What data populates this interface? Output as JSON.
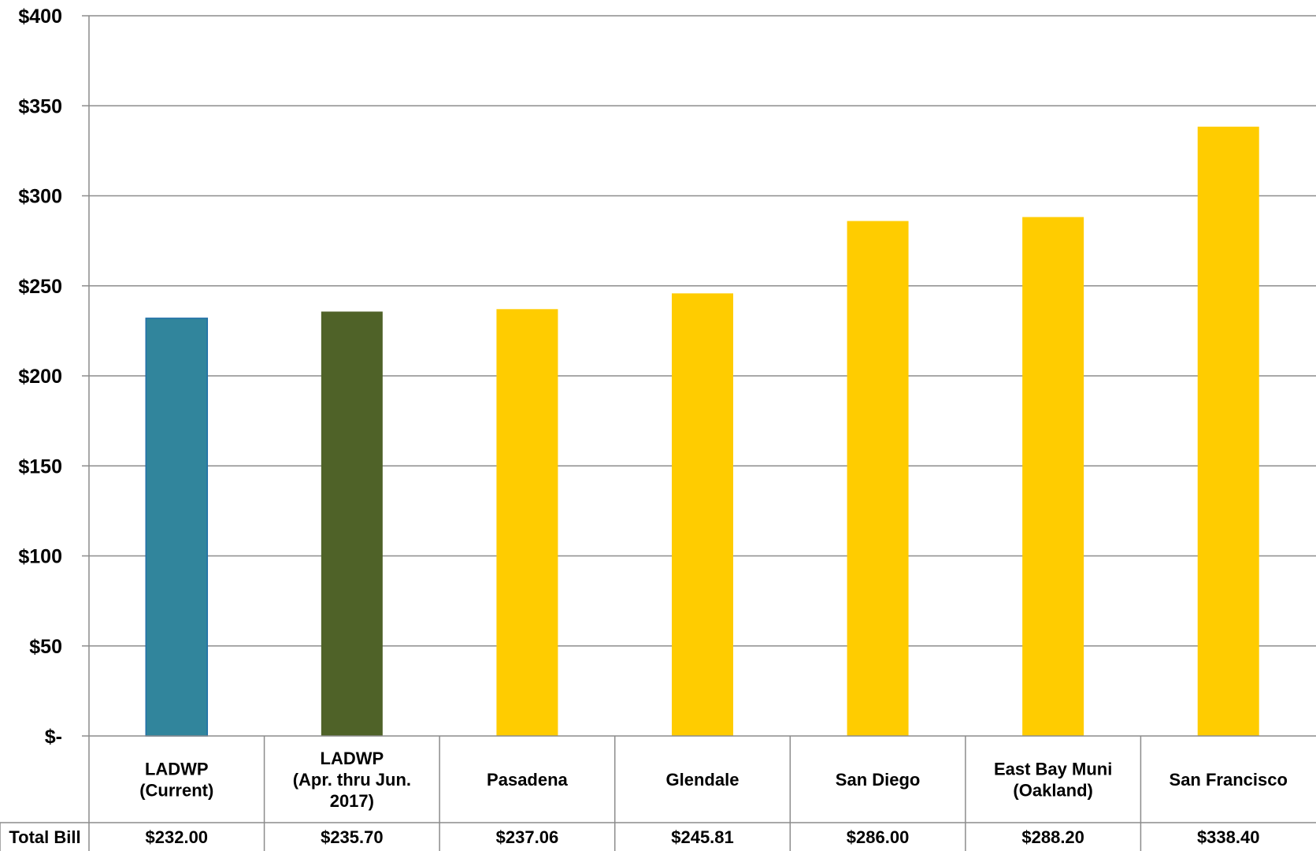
{
  "chart_data": {
    "type": "bar",
    "categories": [
      [
        "LADWP",
        "(Current)"
      ],
      [
        "LADWP",
        "(Apr. thru Jun.",
        "2017)"
      ],
      [
        "Pasadena"
      ],
      [
        "Glendale"
      ],
      [
        "San Diego"
      ],
      [
        "East Bay Muni",
        "(Oakland)"
      ],
      [
        "San Francisco"
      ]
    ],
    "values": [
      232.0,
      235.7,
      237.06,
      245.81,
      286.0,
      288.2,
      338.4
    ],
    "bar_colors": [
      "#31859C",
      "#4F6228",
      "#FFCC00",
      "#FFCC00",
      "#FFCC00",
      "#FFCC00",
      "#FFCC00"
    ],
    "bar_outline": [
      "#1F6FA8",
      null,
      null,
      null,
      null,
      null,
      null
    ],
    "ylim": [
      0,
      400
    ],
    "y_ticks": [
      0,
      50,
      100,
      150,
      200,
      250,
      300,
      350,
      400
    ],
    "y_tick_labels": [
      "$-",
      "$50",
      "$100",
      "$150",
      "$200",
      "$250",
      "$300",
      "$350",
      "$400"
    ],
    "grid": true,
    "data_table": {
      "row_label": "Total Bill",
      "values": [
        "$232.00",
        "$235.70",
        "$237.06",
        "$245.81",
        "$286.00",
        "$288.20",
        "$338.40"
      ]
    }
  }
}
